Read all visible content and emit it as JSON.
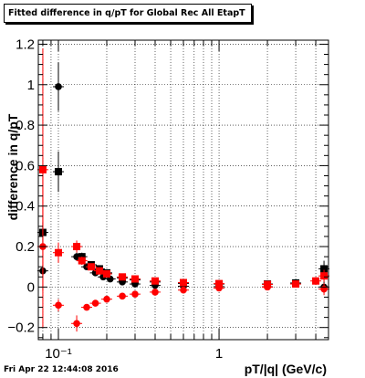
{
  "chart_data": {
    "type": "scatter",
    "title": "Fitted difference in q/pT for Global Rec All EtapT",
    "xlabel": "pT/|q| (GeV/c)",
    "ylabel": "difference in q/pT",
    "x_scale": "log",
    "xlim": [
      0.075,
      4.8
    ],
    "ylim": [
      -0.26,
      1.22
    ],
    "grid": true,
    "x_tick_labels": [
      "10⁻¹",
      "1"
    ],
    "y_tick_labels": [
      "−0.2",
      "0",
      "0.2",
      "0.4",
      "0.6",
      "0.8",
      "1",
      "1.2"
    ],
    "series": [
      {
        "color": "#000000",
        "marker": "circle",
        "points": [
          {
            "x": 0.08,
            "y": 0.08,
            "err": 0.03
          },
          {
            "x": 0.1,
            "y": 0.99,
            "err": 0.12
          },
          {
            "x": 0.13,
            "y": 0.15,
            "err": 0.02
          },
          {
            "x": 0.15,
            "y": 0.1,
            "err": 0.01
          },
          {
            "x": 0.17,
            "y": 0.07,
            "err": 0.01
          },
          {
            "x": 0.19,
            "y": 0.05,
            "err": 0.01
          },
          {
            "x": 0.21,
            "y": 0.04,
            "err": 0.01
          },
          {
            "x": 0.25,
            "y": 0.025,
            "err": 0.005
          },
          {
            "x": 0.3,
            "y": 0.015,
            "err": 0.005
          },
          {
            "x": 0.4,
            "y": 0.008,
            "err": 0.004
          },
          {
            "x": 0.6,
            "y": 0.004,
            "err": 0.003
          },
          {
            "x": 1.0,
            "y": 0.002,
            "err": 0.003
          },
          {
            "x": 2.0,
            "y": 0.001,
            "err": 0.003
          },
          {
            "x": 4.5,
            "y": 0.0,
            "err": 0.03
          }
        ]
      },
      {
        "color": "#000000",
        "marker": "square",
        "points": [
          {
            "x": 0.08,
            "y": 0.27,
            "err": 0.05
          },
          {
            "x": 0.1,
            "y": 0.57,
            "err": 0.1
          },
          {
            "x": 0.14,
            "y": 0.15,
            "err": 0.02
          },
          {
            "x": 0.16,
            "y": 0.11,
            "err": 0.01
          },
          {
            "x": 0.18,
            "y": 0.09,
            "err": 0.01
          },
          {
            "x": 0.2,
            "y": 0.07,
            "err": 0.01
          },
          {
            "x": 0.25,
            "y": 0.045,
            "err": 0.005
          },
          {
            "x": 0.3,
            "y": 0.035,
            "err": 0.005
          },
          {
            "x": 0.4,
            "y": 0.025,
            "err": 0.004
          },
          {
            "x": 0.6,
            "y": 0.018,
            "err": 0.003
          },
          {
            "x": 1.0,
            "y": 0.015,
            "err": 0.003
          },
          {
            "x": 2.0,
            "y": 0.015,
            "err": 0.003
          },
          {
            "x": 3.0,
            "y": 0.02,
            "err": 0.005
          },
          {
            "x": 4.5,
            "y": 0.09,
            "err": 0.04
          }
        ]
      },
      {
        "color": "#ff0000",
        "marker": "square",
        "points": [
          {
            "x": 0.08,
            "y": 0.58,
            "err": 0.6
          },
          {
            "x": 0.1,
            "y": 0.17,
            "err": 0.05
          },
          {
            "x": 0.13,
            "y": 0.2,
            "err": 0.03
          },
          {
            "x": 0.14,
            "y": 0.13,
            "err": 0.02
          },
          {
            "x": 0.16,
            "y": 0.1,
            "err": 0.01
          },
          {
            "x": 0.18,
            "y": 0.08,
            "err": 0.01
          },
          {
            "x": 0.2,
            "y": 0.065,
            "err": 0.01
          },
          {
            "x": 0.25,
            "y": 0.05,
            "err": 0.005
          },
          {
            "x": 0.3,
            "y": 0.04,
            "err": 0.005
          },
          {
            "x": 0.4,
            "y": 0.03,
            "err": 0.004
          },
          {
            "x": 0.6,
            "y": 0.022,
            "err": 0.003
          },
          {
            "x": 1.0,
            "y": 0.017,
            "err": 0.003
          },
          {
            "x": 2.0,
            "y": 0.013,
            "err": 0.003
          },
          {
            "x": 3.0,
            "y": 0.015,
            "err": 0.004
          },
          {
            "x": 4.0,
            "y": 0.03,
            "err": 0.02
          },
          {
            "x": 4.5,
            "y": 0.055,
            "err": 0.03
          }
        ]
      },
      {
        "color": "#ff0000",
        "marker": "circle",
        "points": [
          {
            "x": 0.08,
            "y": 0.2,
            "err": 0.4
          },
          {
            "x": 0.1,
            "y": -0.09,
            "err": 0.03
          },
          {
            "x": 0.13,
            "y": -0.18,
            "err": 0.04
          },
          {
            "x": 0.15,
            "y": -0.1,
            "err": 0.01
          },
          {
            "x": 0.17,
            "y": -0.08,
            "err": 0.01
          },
          {
            "x": 0.2,
            "y": -0.06,
            "err": 0.01
          },
          {
            "x": 0.25,
            "y": -0.045,
            "err": 0.005
          },
          {
            "x": 0.3,
            "y": -0.035,
            "err": 0.005
          },
          {
            "x": 0.4,
            "y": -0.025,
            "err": 0.004
          },
          {
            "x": 0.6,
            "y": -0.015,
            "err": 0.003
          },
          {
            "x": 1.0,
            "y": -0.005,
            "err": 0.003
          },
          {
            "x": 2.0,
            "y": 0.0,
            "err": 0.003
          },
          {
            "x": 4.5,
            "y": -0.01,
            "err": 0.03
          }
        ]
      }
    ]
  },
  "footer": "Fri Apr 22 12:44:08 2016"
}
